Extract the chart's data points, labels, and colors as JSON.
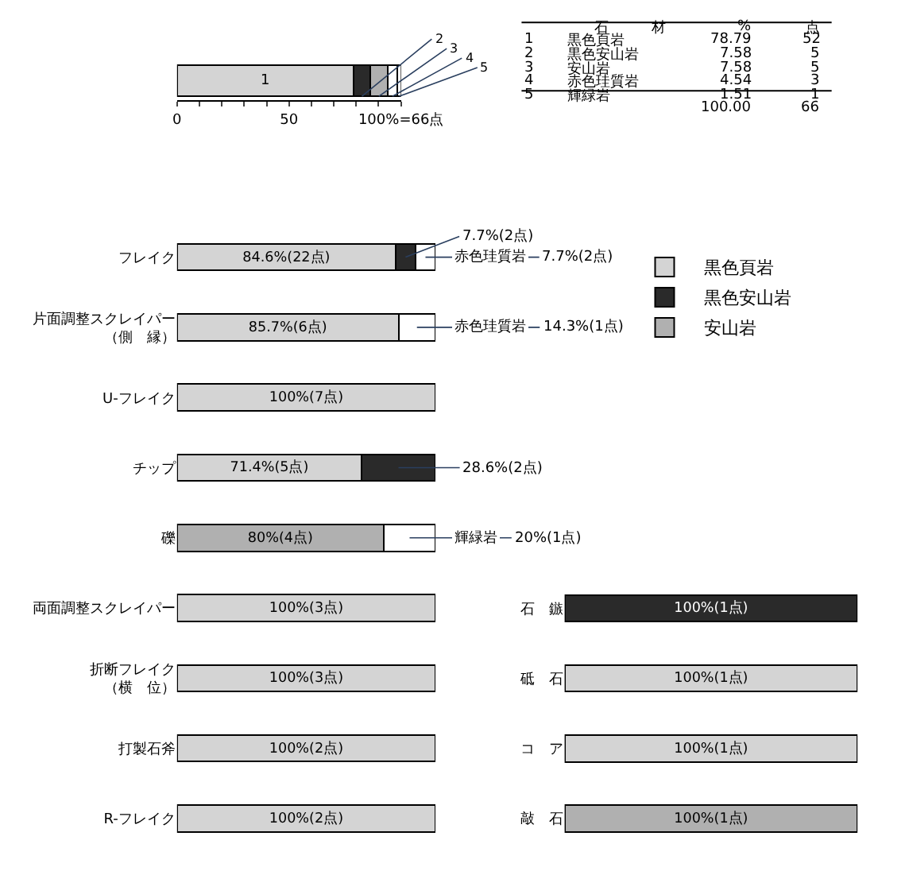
{
  "chart_data": [
    {
      "type": "bar",
      "orientation": "horizontal",
      "stacked": true,
      "categories": [
        null
      ],
      "series": [
        {
          "name": "1",
          "color": "#d4d4d4",
          "values": [
            78.79
          ]
        },
        {
          "name": "2",
          "color": "#2a2a2a",
          "values": [
            7.58
          ]
        },
        {
          "name": "3",
          "color": "#b0b0b0",
          "values": [
            7.58
          ]
        },
        {
          "name": "4",
          "color": "#ffffff",
          "values": [
            4.54
          ]
        },
        {
          "name": "5",
          "color": "#ffffff",
          "values": [
            1.51
          ]
        }
      ],
      "xlim": [
        0,
        100
      ],
      "xticks": [
        0,
        {
          "value": 10,
          "label": null
        },
        {
          "value": 20,
          "label": null
        },
        {
          "value": 30,
          "label": null
        },
        {
          "value": 40,
          "label": null
        },
        50,
        {
          "value": 60,
          "label": null
        },
        {
          "value": 70,
          "label": null
        },
        {
          "value": 80,
          "label": null
        },
        {
          "value": 90,
          "label": null
        },
        {
          "value": 100,
          "label": "100%=66点"
        }
      ],
      "annotations": [
        "石　　　材",
        "%",
        "点",
        "1",
        "黒色頁岩",
        "78.79",
        "52",
        "2",
        "黒色安山岩",
        "7.58",
        "5",
        "3",
        "安山岩",
        "7.58",
        "5",
        "4",
        "赤色珪質岩",
        "4.54",
        "3",
        "5",
        "輝緑岩",
        "1.51",
        "1",
        "100.00",
        "66"
      ]
    },
    {
      "type": "bar",
      "orientation": "horizontal",
      "stacked": true,
      "legend": "right",
      "categories": [
        "フレイク",
        "片面調整スクレイパー（側　縁）",
        "U-フレイク",
        "チップ",
        "礫",
        "両面調整スクレイパー",
        "折断フレイク（横　位）",
        "打製石斧",
        "R-フレイク"
      ],
      "series": [
        {
          "name": "黒色頁岩",
          "color": "#d4d4d4",
          "values": [
            84.6,
            85.7,
            100,
            71.4,
            null,
            100,
            100,
            100,
            100
          ],
          "value_labels": [
            "84.6%(22点)",
            "85.7%(6点)",
            "100%(7点)",
            "71.4%(5点)",
            null,
            "100%(3点)",
            "100%(3点)",
            "100%(2点)",
            "100%(2点)"
          ]
        },
        {
          "name": "黒色安山岩",
          "color": "#2a2a2a",
          "values": [
            7.7,
            null,
            null,
            28.6,
            null,
            null,
            null,
            null,
            null
          ],
          "value_labels": [
            "7.7%(2点)",
            null,
            null,
            "28.6%(2点)",
            null,
            null,
            null,
            null,
            null
          ]
        },
        {
          "name": "安山岩",
          "color": "#b0b0b0",
          "values": [
            null,
            null,
            null,
            null,
            80,
            null,
            null,
            null,
            null
          ],
          "value_labels": [
            null,
            null,
            null,
            null,
            "80%(4点)",
            null,
            null,
            null,
            null
          ]
        },
        {
          "name": "赤色珪質岩",
          "color": "#ffffff",
          "values": [
            7.7,
            14.3,
            null,
            null,
            null,
            null,
            null,
            null,
            null
          ],
          "value_labels": [
            "7.7%(2点)",
            "14.3%(1点)",
            null,
            null,
            null,
            null,
            null,
            null,
            null
          ]
        },
        {
          "name": "輝緑岩",
          "color": "#ffffff",
          "values": [
            null,
            null,
            null,
            null,
            20,
            null,
            null,
            null,
            null
          ],
          "value_labels": [
            null,
            null,
            null,
            null,
            "20%(1点)",
            null,
            null,
            null,
            null
          ]
        }
      ]
    },
    {
      "type": "bar",
      "orientation": "horizontal",
      "stacked": true,
      "categories": [
        "石　鏃",
        "砥　石",
        "コ　ア",
        "敲　石"
      ],
      "series": [
        {
          "color": "#d4d4d4",
          "values": [
            null,
            100,
            100,
            null
          ],
          "value_labels": [
            null,
            "100%(1点)",
            "100%(1点)",
            null
          ]
        },
        {
          "color": "#2a2a2a",
          "values": [
            100,
            null,
            null,
            null
          ],
          "value_labels": [
            "100%(1点)",
            null,
            null,
            null
          ]
        },
        {
          "color": "#b0b0b0",
          "values": [
            null,
            null,
            null,
            100
          ],
          "value_labels": [
            null,
            null,
            null,
            "100%(1点)"
          ]
        }
      ]
    }
  ]
}
